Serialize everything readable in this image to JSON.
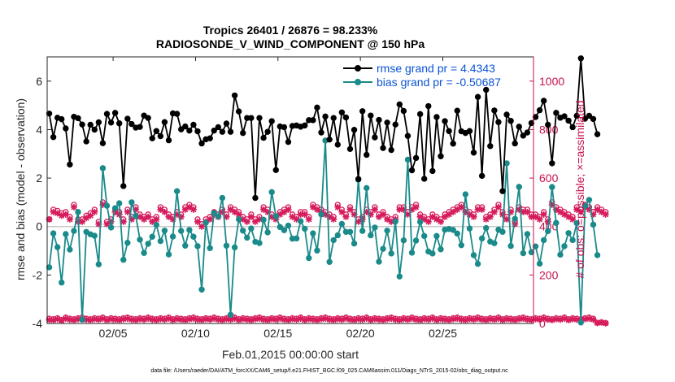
{
  "chart_data": {
    "type": "line",
    "title_line1": "Tropics 26401 / 26876 = 98.233%",
    "title_line2": "RADIOSONDE_V_WIND_COMPONENT @ 150 hPa",
    "xlabel": "Feb.01,2015 00:00:00 start",
    "ylabel_left": "rmse and bias (model - observation)",
    "ylabel_right": "# of obs: o=possible; ×=assimilated",
    "xlim": [
      0,
      29.5
    ],
    "ylim_left": [
      -4,
      7
    ],
    "ylim_right": [
      0,
      1100
    ],
    "x_ticks": [
      {
        "x": 4,
        "label": "02/05"
      },
      {
        "x": 9,
        "label": "02/10"
      },
      {
        "x": 14,
        "label": "02/15"
      },
      {
        "x": 19,
        "label": "02/20"
      },
      {
        "x": 24,
        "label": "02/25"
      }
    ],
    "y_ticks_left": [
      "-4",
      "-2",
      "0",
      "2",
      "4",
      "6"
    ],
    "y_ticks_right": [
      "0",
      "200",
      "400",
      "600",
      "800",
      "1000"
    ],
    "legend": [
      {
        "label": "rmse grand pr = 4.4343",
        "color": "#000000"
      },
      {
        "label": "bias grand pr = -0.50687",
        "color": "#1a8a8a"
      }
    ],
    "colors": {
      "rmse": "#000000",
      "bias": "#1a8a8a",
      "obs": "#d61c5c",
      "zero_line": "#c8c8c8"
    },
    "x_step": 0.25,
    "rmse": [
      4.66,
      3.69,
      4.49,
      4.43,
      4.05,
      2.56,
      4.53,
      4.47,
      4.21,
      3.51,
      4.2,
      4.0,
      4.3,
      3.44,
      4.65,
      4.29,
      4.69,
      4.26,
      1.67,
      4.45,
      4.23,
      4.08,
      4.11,
      4.58,
      4.48,
      3.64,
      3.94,
      3.73,
      4.31,
      3.56,
      4.67,
      4.65,
      4.01,
      4.13,
      3.96,
      4.2,
      3.93,
      3.43,
      3.6,
      3.64,
      3.96,
      4.1,
      3.91,
      4.25,
      3.91,
      5.41,
      4.75,
      3.86,
      4.48,
      4.48,
      1.18,
      4.48,
      3.66,
      3.91,
      4.35,
      2.33,
      4.13,
      4.1,
      3.49,
      4.15,
      4.17,
      4.12,
      4.17,
      4.39,
      4.39,
      4.91,
      3.88,
      4.54,
      3.59,
      4.48,
      3.38,
      4.71,
      4.5,
      3.2,
      3.99,
      1.96,
      4.76,
      2.96,
      4.58,
      3.68,
      4.4,
      3.24,
      4.29,
      3.16,
      4.21,
      5.04,
      4.77,
      3.74,
      2.32,
      2.83,
      4.64,
      1.97,
      4.97,
      2.29,
      4.52,
      2.9,
      4.35,
      3.94,
      3.42,
      4.78,
      3.93,
      3.86,
      3.94,
      3.05,
      5.35,
      2.09,
      5.64,
      3.32,
      4.79,
      4.31,
      1.46,
      4.62,
      4.36,
      3.43,
      4.12,
      3.75,
      3.88,
      4.27,
      4.52,
      4.8,
      5.19,
      4.2,
      2.61,
      4.69,
      4.49,
      4.55,
      4.37,
      4.1,
      4.57,
      6.94,
      4.45,
      4.57,
      4.44,
      3.81
    ],
    "bias": [
      -1.68,
      -0.28,
      -0.85,
      -2.31,
      -0.31,
      -0.95,
      -0.18,
      0.6,
      -3.84,
      -0.22,
      -0.32,
      -0.38,
      -1.56,
      2.41,
      0.86,
      -0.04,
      0.76,
      0.96,
      -1.37,
      -0.67,
      1.0,
      0.44,
      -0.54,
      -1.09,
      -0.71,
      -0.42,
      0.07,
      -0.6,
      -0.17,
      -1.15,
      -0.41,
      1.46,
      -0.18,
      -0.79,
      -0.14,
      -0.42,
      -0.81,
      -2.6,
      0.16,
      -0.89,
      0.56,
      0.42,
      1.18,
      -0.79,
      -3.64,
      -0.86,
      0.3,
      -0.17,
      -0.46,
      -0.08,
      -0.63,
      -0.68,
      0.28,
      -0.24,
      1.42,
      0.43,
      -0.02,
      -0.15,
      0.04,
      -0.5,
      -0.49,
      0.22,
      -0.09,
      -1.3,
      -0.28,
      -0.99,
      0.5,
      3.55,
      -1.46,
      -0.56,
      -0.36,
      0.11,
      -0.22,
      -0.22,
      -0.7,
      1.93,
      -0.18,
      1.59,
      -0.36,
      -0.04,
      -1.45,
      -0.92,
      -0.17,
      -1.11,
      0.21,
      -2.06,
      -0.57,
      2.76,
      -1.08,
      -0.58,
      0.19,
      -0.39,
      -1.03,
      -1.11,
      -0.39,
      -0.94,
      -0.13,
      -0.1,
      -0.14,
      -0.29,
      -0.77,
      1.33,
      -0.08,
      -1.18,
      -1.54,
      -0.49,
      -0.06,
      -0.62,
      -0.69,
      -0.13,
      -0.22,
      2.61,
      -0.8,
      0.32,
      1.64,
      -1.1,
      -0.31,
      -1.06,
      -0.82,
      -1.53,
      -0.56,
      -0.19,
      1.63,
      0.15,
      -1.16,
      -0.81,
      -0.27,
      -0.56,
      0.14,
      -3.96,
      0.85,
      1.1,
      0.08,
      -1.18
    ],
    "obs_possible": [
      430,
      470,
      465,
      455,
      460,
      440,
      490,
      430,
      430,
      445,
      455,
      470,
      420,
      500,
      420,
      430,
      470,
      460,
      430,
      470,
      440,
      480,
      450,
      440,
      450,
      430,
      440,
      480,
      470,
      450,
      440,
      460,
      450,
      480,
      490,
      480,
      430,
      410,
      430,
      440,
      460,
      450,
      470,
      450,
      480,
      470,
      460,
      440,
      430,
      450,
      430,
      440,
      480,
      470,
      450,
      440,
      460,
      470,
      480,
      450,
      440,
      460,
      460,
      440,
      490,
      480,
      470,
      460,
      450,
      440,
      490,
      470,
      450,
      480,
      460,
      430,
      440,
      470,
      460,
      480,
      450,
      460,
      440,
      430,
      440,
      480,
      480,
      460,
      480,
      490,
      450,
      440,
      430,
      450,
      440,
      430,
      450,
      460,
      470,
      480,
      490,
      470,
      460,
      450,
      480,
      480,
      440,
      450,
      470,
      490,
      460,
      440,
      470,
      420,
      480,
      470,
      470,
      450,
      450,
      440,
      460,
      430,
      500,
      480,
      470,
      460,
      450,
      440,
      480,
      470,
      490,
      480,
      460,
      480,
      470,
      460
    ],
    "obs_assimilated": [
      430,
      460,
      455,
      445,
      450,
      430,
      480,
      420,
      420,
      435,
      445,
      460,
      410,
      490,
      410,
      420,
      460,
      450,
      420,
      460,
      430,
      470,
      440,
      430,
      440,
      420,
      430,
      470,
      460,
      440,
      430,
      450,
      440,
      470,
      480,
      470,
      420,
      400,
      420,
      430,
      450,
      440,
      460,
      440,
      470,
      460,
      450,
      430,
      420,
      440,
      420,
      430,
      470,
      460,
      440,
      430,
      450,
      460,
      470,
      440,
      430,
      450,
      450,
      430,
      480,
      470,
      460,
      450,
      440,
      430,
      480,
      460,
      440,
      470,
      450,
      420,
      430,
      460,
      450,
      470,
      440,
      450,
      430,
      420,
      430,
      470,
      470,
      450,
      470,
      480,
      440,
      430,
      420,
      440,
      430,
      420,
      440,
      450,
      460,
      470,
      480,
      460,
      450,
      440,
      470,
      470,
      430,
      440,
      460,
      480,
      450,
      430,
      460,
      410,
      470,
      460,
      460,
      440,
      440,
      430,
      450,
      420,
      490,
      470,
      460,
      450,
      440,
      430,
      470,
      460,
      480,
      470,
      450,
      470,
      460,
      450
    ],
    "obs_low_possible": [
      20,
      18,
      22,
      15,
      25,
      20,
      18,
      22,
      25,
      20,
      18,
      22,
      20,
      25,
      18,
      22,
      20,
      18,
      22,
      25,
      20,
      18,
      22,
      20,
      25,
      20,
      18,
      22,
      20,
      25,
      18,
      22,
      20,
      18,
      22,
      25,
      20,
      18,
      22,
      20,
      25,
      20,
      18,
      22,
      20,
      25,
      18,
      22,
      20,
      18,
      22,
      25,
      20,
      18,
      22,
      20,
      25,
      20,
      18,
      22,
      20,
      25,
      18,
      22,
      20,
      18,
      22,
      25,
      20,
      18,
      22,
      20,
      25,
      20,
      18,
      22,
      20,
      25,
      18,
      22,
      20,
      18,
      22,
      25,
      20,
      18,
      22,
      20,
      25,
      20,
      18,
      22,
      20,
      25,
      18,
      22,
      20,
      18,
      22,
      25,
      20,
      18,
      22,
      20,
      25,
      20,
      18,
      22,
      20,
      25,
      18,
      22,
      20,
      18,
      22,
      25,
      20,
      18,
      22,
      20,
      25,
      20,
      18,
      22,
      20,
      25,
      18,
      22,
      20,
      18,
      22,
      25,
      20,
      3,
      5,
      2
    ],
    "obs_low_assimilated": [
      15,
      14,
      18,
      12,
      20,
      16,
      14,
      18,
      20,
      16,
      14,
      18,
      16,
      20,
      14,
      18,
      16,
      14,
      18,
      20,
      16,
      14,
      18,
      16,
      20,
      16,
      14,
      18,
      16,
      20,
      14,
      18,
      16,
      14,
      18,
      20,
      16,
      14,
      18,
      16,
      20,
      16,
      14,
      18,
      16,
      20,
      14,
      18,
      16,
      14,
      18,
      20,
      16,
      14,
      18,
      16,
      20,
      16,
      14,
      18,
      16,
      20,
      14,
      18,
      16,
      14,
      18,
      20,
      16,
      14,
      18,
      16,
      20,
      16,
      14,
      18,
      16,
      20,
      14,
      18,
      16,
      14,
      18,
      20,
      16,
      14,
      18,
      16,
      20,
      16,
      14,
      18,
      16,
      20,
      14,
      18,
      16,
      14,
      18,
      20,
      16,
      14,
      18,
      16,
      20,
      16,
      14,
      18,
      16,
      20,
      14,
      18,
      16,
      14,
      18,
      20,
      16,
      14,
      18,
      16,
      20,
      16,
      14,
      18,
      16,
      20,
      14,
      18,
      16,
      14,
      18,
      20,
      16,
      2,
      4,
      1
    ]
  },
  "footnote": "data file: /Users/raeder/DAI/ATM_forcXX/CAM6_setup/f.e21.FHIST_BGC.f09_025.CAM6assim.011/Diags_NTrS_2015-02/obs_diag_output.nc"
}
